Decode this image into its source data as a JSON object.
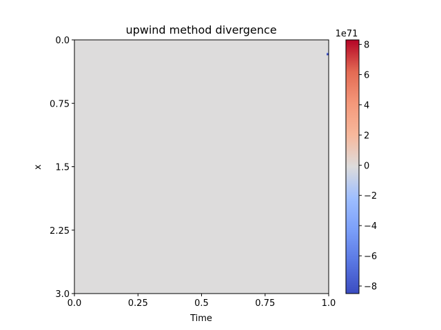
{
  "chart_data": {
    "type": "heatmap",
    "title": "upwind method divergence",
    "xlabel": "Time",
    "ylabel": "x",
    "x_ticks": [
      "0.0",
      "0.25",
      "0.5",
      "0.75",
      "1.0"
    ],
    "x_tick_values": [
      0.0,
      0.25,
      0.5,
      0.75,
      1.0
    ],
    "y_ticks": [
      "0.0",
      "0.75",
      "1.5",
      "2.25",
      "3.0"
    ],
    "y_tick_values": [
      0.0,
      0.75,
      1.5,
      2.25,
      3.0
    ],
    "xlim": [
      0.0,
      1.0
    ],
    "ylim": [
      3.0,
      0.0
    ],
    "y_inverted": true,
    "background_value": 0,
    "anomalies": [
      {
        "time": 1.0,
        "x": 0.17,
        "value": -8e+71
      }
    ],
    "colorbar": {
      "colormap": "coolwarm",
      "min": -8.5e+71,
      "max": 8.3e+71,
      "exponent_label": "1e71",
      "ticks": [
        "−8",
        "−6",
        "−4",
        "−2",
        "0",
        "2",
        "4",
        "6",
        "8"
      ],
      "tick_values": [
        -8,
        -6,
        -4,
        -2,
        0,
        2,
        4,
        6,
        8
      ]
    },
    "colors": {
      "neutral": "#dddcdc",
      "cold": "#3b4cc0",
      "warm": "#b40426"
    }
  }
}
